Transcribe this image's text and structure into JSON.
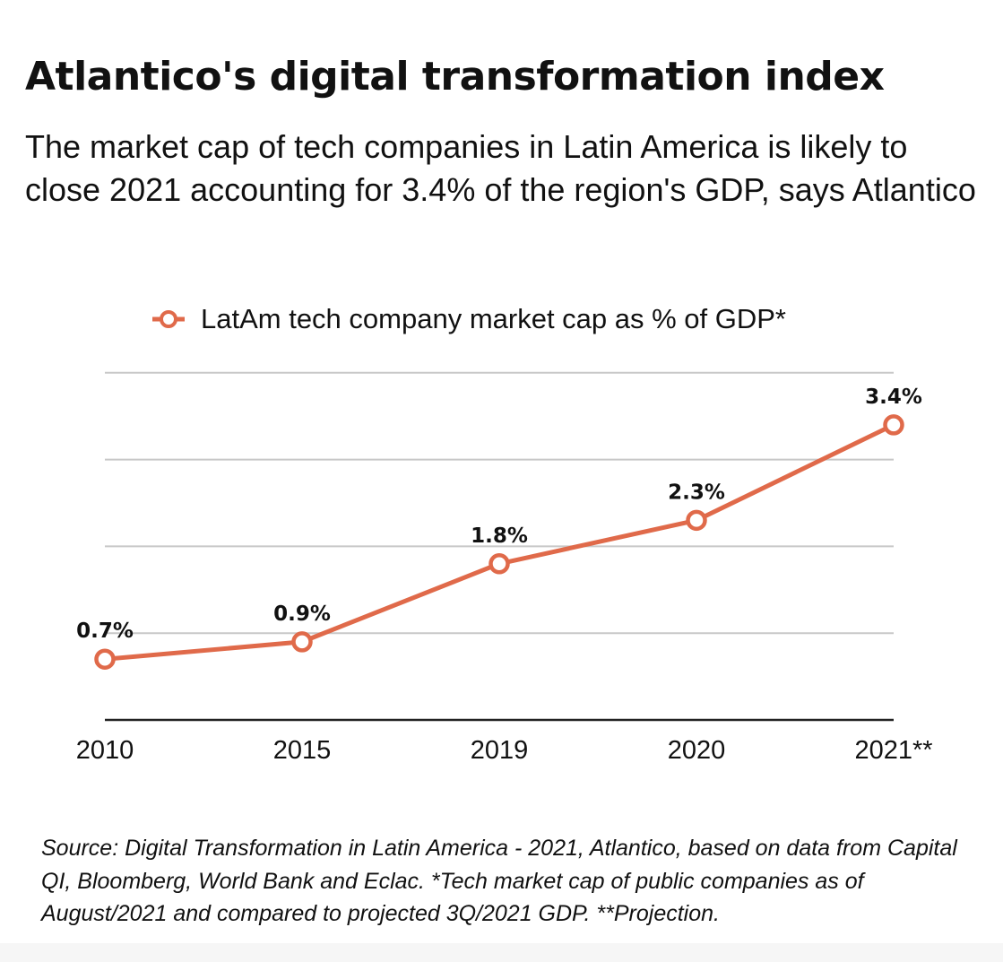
{
  "header": {
    "title": "Atlantico's digital transformation index",
    "subtitle": "The market cap of tech companies in Latin America is likely to close 2021 accounting for 3.4% of the region's GDP,  says Atlantico"
  },
  "legend": {
    "label": "LatAm tech company market cap as % of GDP*",
    "placement": "top-center"
  },
  "chart_data": {
    "type": "line",
    "categories": [
      "2010",
      "2015",
      "2019",
      "2020",
      "2021**"
    ],
    "series": [
      {
        "name": "LatAm tech company market cap as % of GDP*",
        "values": [
          0.7,
          0.9,
          1.8,
          2.3,
          3.4
        ],
        "data_labels": [
          "0.7%",
          "0.9%",
          "1.8%",
          "2.3%",
          "3.4%"
        ],
        "color": "#e06a4a"
      }
    ],
    "ylim": [
      0,
      4
    ],
    "yticks": [
      0,
      1,
      2,
      3,
      4
    ],
    "grid": true,
    "y_tick_labels_shown": false
  },
  "footer": {
    "source": "Source: Digital Transformation in Latin America - 2021, Atlantico, based on data from Capital QI, Bloomberg, World Bank and Eclac. *Tech market cap of public companies as of August/2021 and compared to projected 3Q/2021 GDP. **Projection."
  },
  "colors": {
    "series": "#e06a4a",
    "grid": "#c8c8c8",
    "axis": "#222222",
    "text": "#111111"
  }
}
